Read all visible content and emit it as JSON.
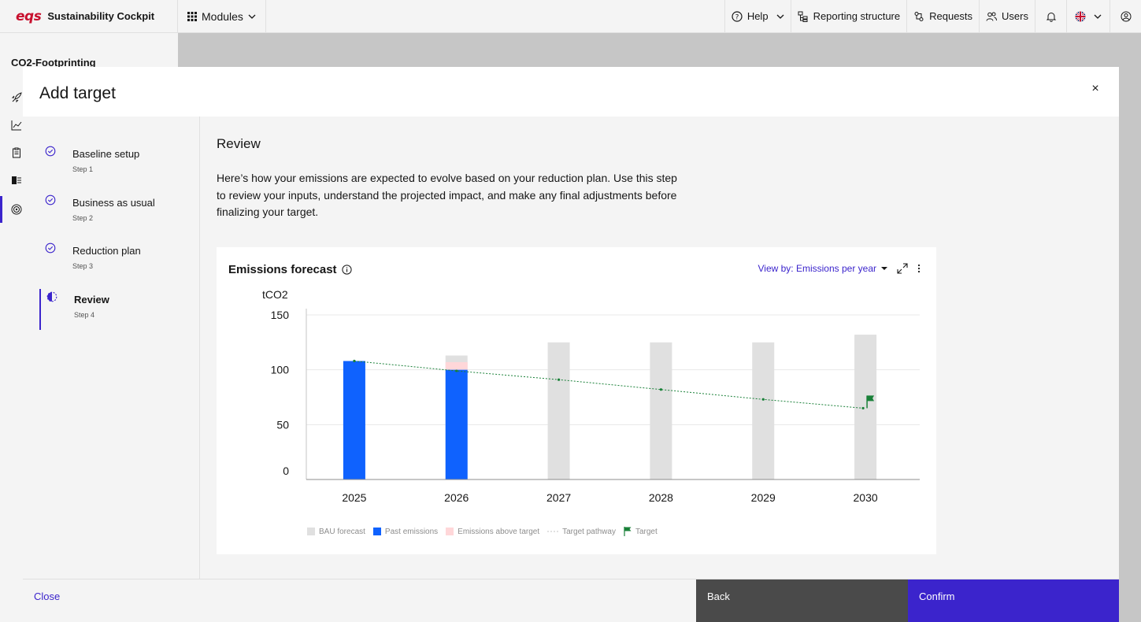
{
  "header": {
    "logo_text": "eqs",
    "app_name": "Sustainability Cockpit",
    "modules_label": "Modules",
    "nav": [
      {
        "label": "Help",
        "icon": "help-icon"
      },
      {
        "label": "Reporting structure",
        "icon": "reporting-structure-icon"
      },
      {
        "label": "Requests",
        "icon": "requests-icon"
      },
      {
        "label": "Users",
        "icon": "users-icon"
      }
    ]
  },
  "background_page": {
    "title": "CO2-Footprinting"
  },
  "modal": {
    "title": "Add target",
    "close_symbol": "×",
    "steps": [
      {
        "label": "Baseline setup",
        "sub": "Step 1",
        "state": "complete"
      },
      {
        "label": "Business as usual",
        "sub": "Step 2",
        "state": "complete"
      },
      {
        "label": "Reduction plan",
        "sub": "Step 3",
        "state": "complete"
      },
      {
        "label": "Review",
        "sub": "Step 4",
        "state": "current"
      }
    ],
    "review_title": "Review",
    "review_description": "Here’s how your emissions are expected to evolve based on your reduction plan. Use this step to review your inputs, understand the projected impact, and make any final adjustments before finalizing your target.",
    "card": {
      "title": "Emissions forecast",
      "view_by": "View by: Emissions per year"
    },
    "footer": {
      "close_label": "Close",
      "back_label": "Back",
      "confirm_label": "Confirm"
    }
  },
  "colors": {
    "accent": "#3b24cc",
    "past_emissions": "#0f62fe",
    "bau_forecast": "#e0e0e0",
    "emissions_above_target": "#ffd7d9",
    "target": "#198038"
  },
  "chart_data": {
    "type": "bar",
    "ylabel": "tCO2",
    "ylim": [
      0,
      150
    ],
    "yticks": [
      0,
      50,
      100,
      150
    ],
    "grid": true,
    "categories": [
      "2025",
      "2026",
      "2027",
      "2028",
      "2029",
      "2030"
    ],
    "series": [
      {
        "name": "BAU forecast",
        "type": "bar",
        "values": [
          null,
          113,
          125,
          125,
          125,
          132
        ]
      },
      {
        "name": "Past emissions",
        "type": "bar",
        "values": [
          108,
          100,
          null,
          null,
          null,
          null
        ]
      },
      {
        "name": "Emissions above target",
        "type": "bar",
        "values": [
          null,
          100,
          null,
          null,
          null,
          null
        ],
        "top": [
          null,
          107,
          null,
          null,
          null,
          null
        ]
      },
      {
        "name": "Target pathway",
        "type": "line",
        "values": [
          108,
          99,
          91,
          82,
          73,
          65
        ]
      },
      {
        "name": "Target",
        "type": "marker",
        "values": [
          null,
          null,
          null,
          null,
          null,
          65
        ]
      }
    ],
    "legend": [
      "BAU forecast",
      "Past emissions",
      "Emissions above target",
      "Target pathway",
      "Target"
    ],
    "legend_position": "bottom-left"
  }
}
